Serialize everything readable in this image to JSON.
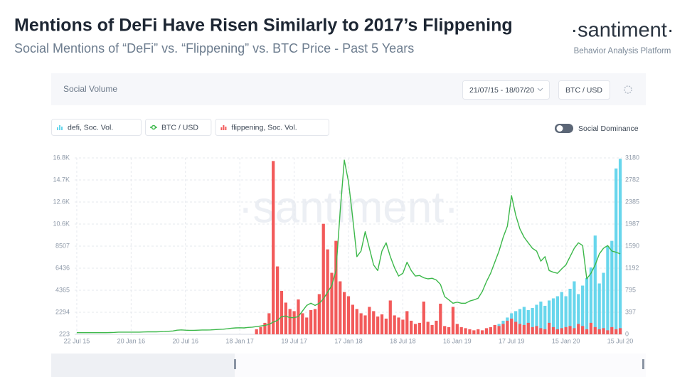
{
  "header": {
    "title": "Mentions of DeFi Have Risen Similarly to 2017’s Flippening",
    "subtitle": "Social Mentions of “DeFi” vs. “Flippening” vs. BTC Price - Past 5 Years",
    "logo": "·santiment·",
    "tagline": "Behavior Analysis Platform"
  },
  "controls": {
    "panel_title": "Social Volume",
    "date_range": "21/07/15 - 18/07/20",
    "metric": "BTC / USD",
    "toggle": "Social Dominance"
  },
  "chart_data": {
    "type": "bar",
    "watermark": "·santiment·",
    "grid": true,
    "categories": [
      "22 Jul 15",
      null,
      null,
      null,
      null,
      null,
      null,
      null,
      null,
      null,
      null,
      null,
      null,
      "20 Jan 16",
      null,
      null,
      null,
      null,
      null,
      null,
      null,
      null,
      null,
      null,
      null,
      null,
      "20 Jul 16",
      null,
      null,
      null,
      null,
      null,
      null,
      null,
      null,
      null,
      null,
      null,
      null,
      "18 Jan 17",
      null,
      null,
      null,
      null,
      null,
      null,
      null,
      null,
      null,
      null,
      null,
      null,
      "19 Jul 17",
      null,
      null,
      null,
      null,
      null,
      null,
      null,
      null,
      null,
      null,
      null,
      null,
      "17 Jan 18",
      null,
      null,
      null,
      null,
      null,
      null,
      null,
      null,
      null,
      null,
      null,
      null,
      "18 Jul 18",
      null,
      null,
      null,
      null,
      null,
      null,
      null,
      null,
      null,
      null,
      null,
      null,
      "16 Jan 19",
      null,
      null,
      null,
      null,
      null,
      null,
      null,
      null,
      null,
      null,
      null,
      null,
      "17 Jul 19",
      null,
      null,
      null,
      null,
      null,
      null,
      null,
      null,
      null,
      null,
      null,
      null,
      "15 Jan 20",
      null,
      null,
      null,
      null,
      null,
      null,
      null,
      null,
      null,
      null,
      null,
      null,
      "15 Jul 20"
    ],
    "ylim": [
      223,
      16791
    ],
    "yticks": [
      223,
      2294,
      4365,
      6436,
      8507,
      {
        "value": 10578,
        "label": "10.6K"
      },
      {
        "value": 12649,
        "label": "12.6K"
      },
      {
        "value": 14720,
        "label": "14.7K"
      },
      {
        "value": 16791,
        "label": "16.8K"
      }
    ],
    "y2lim": [
      0,
      3180
    ],
    "y2ticks": [
      0,
      397,
      795,
      1192,
      1590,
      1987,
      2385,
      2782,
      3180
    ],
    "series": [
      {
        "name": "defi, Soc. Vol.",
        "color": "#68d6ec",
        "values": [
          0,
          0,
          0,
          0,
          0,
          0,
          0,
          0,
          0,
          0,
          0,
          0,
          0,
          0,
          0,
          0,
          0,
          0,
          0,
          0,
          0,
          0,
          0,
          0,
          0,
          0,
          0,
          0,
          0,
          0,
          0,
          0,
          0,
          0,
          0,
          0,
          0,
          0,
          0,
          0,
          0,
          0,
          0,
          0,
          0,
          0,
          0,
          0,
          0,
          0,
          0,
          0,
          0,
          0,
          0,
          0,
          0,
          0,
          0,
          0,
          0,
          0,
          0,
          0,
          0,
          0,
          0,
          0,
          0,
          0,
          0,
          0,
          0,
          0,
          0,
          0,
          0,
          0,
          0,
          0,
          0,
          0,
          0,
          0,
          0,
          0,
          0,
          0,
          0,
          0,
          0,
          300,
          250,
          300,
          400,
          350,
          400,
          500,
          600,
          700,
          800,
          1200,
          1500,
          1800,
          2200,
          2400,
          2600,
          2800,
          2500,
          2700,
          3000,
          3300,
          2900,
          3400,
          3600,
          3800,
          4200,
          3800,
          4500,
          5200,
          4000,
          4800,
          5500,
          6500,
          9500,
          5000,
          6000,
          8500,
          9000,
          15800,
          16700
        ]
      },
      {
        "name": "BTC / USD",
        "color": "#3cb84a",
        "type": "line",
        "axis": "y2",
        "values": [
          30,
          30,
          30,
          30,
          30,
          30,
          30,
          30,
          32,
          35,
          40,
          40,
          40,
          40,
          40,
          40,
          42,
          45,
          45,
          45,
          47,
          50,
          55,
          60,
          75,
          80,
          75,
          72,
          72,
          75,
          78,
          78,
          80,
          85,
          88,
          92,
          100,
          110,
          115,
          118,
          115,
          125,
          130,
          140,
          150,
          160,
          180,
          220,
          250,
          320,
          330,
          300,
          300,
          320,
          420,
          520,
          560,
          520,
          560,
          640,
          760,
          880,
          1150,
          2200,
          3140,
          2750,
          2100,
          1400,
          1500,
          1850,
          1550,
          1250,
          1150,
          1500,
          1650,
          1400,
          1200,
          1050,
          1100,
          1300,
          1150,
          1050,
          1060,
          1020,
          1000,
          1010,
          980,
          900,
          680,
          620,
          560,
          580,
          560,
          560,
          600,
          620,
          650,
          770,
          950,
          1100,
          1300,
          1500,
          1750,
          1950,
          2500,
          2150,
          1900,
          1750,
          1650,
          1550,
          1500,
          1320,
          1400,
          1150,
          1120,
          1100,
          1180,
          1250,
          1400,
          1550,
          1650,
          1600,
          1000,
          1100,
          1250,
          1450,
          1550,
          1600,
          1500,
          1480,
          1450
        ]
      },
      {
        "name": "flippening, Soc. Vol.",
        "color": "#f25a5a",
        "values": [
          0,
          0,
          0,
          0,
          0,
          0,
          0,
          0,
          0,
          0,
          0,
          0,
          0,
          0,
          0,
          0,
          0,
          0,
          0,
          0,
          0,
          0,
          0,
          0,
          0,
          0,
          0,
          0,
          0,
          0,
          0,
          0,
          0,
          0,
          0,
          0,
          0,
          0,
          0,
          0,
          0,
          0,
          0,
          700,
          900,
          1300,
          2200,
          16500,
          6600,
          4300,
          3200,
          2600,
          2400,
          3500,
          2200,
          1800,
          2500,
          2600,
          4000,
          10600,
          8200,
          6000,
          9000,
          5200,
          4200,
          3800,
          3000,
          2600,
          2200,
          2000,
          2800,
          2400,
          1900,
          2100,
          1700,
          3400,
          2000,
          1800,
          1600,
          2400,
          1500,
          1200,
          1300,
          3300,
          1400,
          1100,
          1500,
          3100,
          1000,
          900,
          2800,
          1200,
          900,
          800,
          700,
          600,
          700,
          600,
          800,
          900,
          1100,
          1000,
          1200,
          1500,
          1700,
          1400,
          1200,
          1100,
          1300,
          900,
          1000,
          800,
          700,
          1300,
          900,
          700,
          800,
          900,
          1000,
          800,
          1200,
          1000,
          700,
          1300,
          900,
          700,
          800,
          600,
          900,
          700,
          800
        ]
      }
    ]
  }
}
